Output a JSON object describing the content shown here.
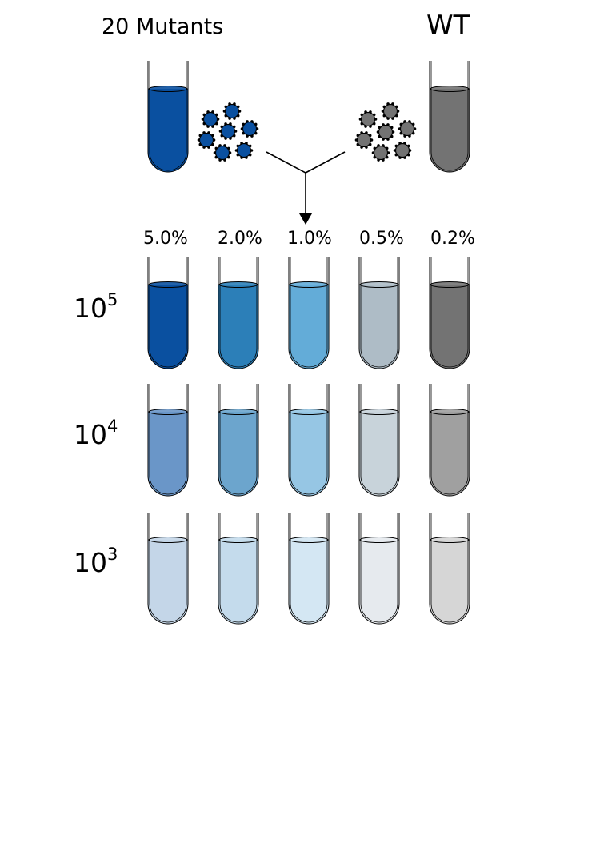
{
  "titles": {
    "left": "20 Mutants",
    "right": "WT"
  },
  "concentrations": [
    "5.0%",
    "2.0%",
    "1.0%",
    "0.5%",
    "0.2%"
  ],
  "rows": [
    {
      "base": "10",
      "exponent": "5"
    },
    {
      "base": "10",
      "exponent": "4"
    },
    {
      "base": "10",
      "exponent": "3"
    }
  ],
  "colors": {
    "mutant_blue": "#0a50a0",
    "wt_gray": "#737373",
    "row_5": [
      "#0a50a0",
      "#2c7fb8",
      "#63acd8",
      "#aebcc6",
      "#737373"
    ],
    "row_4": [
      "#6a96c8",
      "#6ca5cd",
      "#96c6e4",
      "#c8d3da",
      "#a0a0a0"
    ],
    "row_3": [
      "#c4d6e8",
      "#c4dbec",
      "#d4e7f3",
      "#e6eaee",
      "#d6d6d6"
    ]
  }
}
